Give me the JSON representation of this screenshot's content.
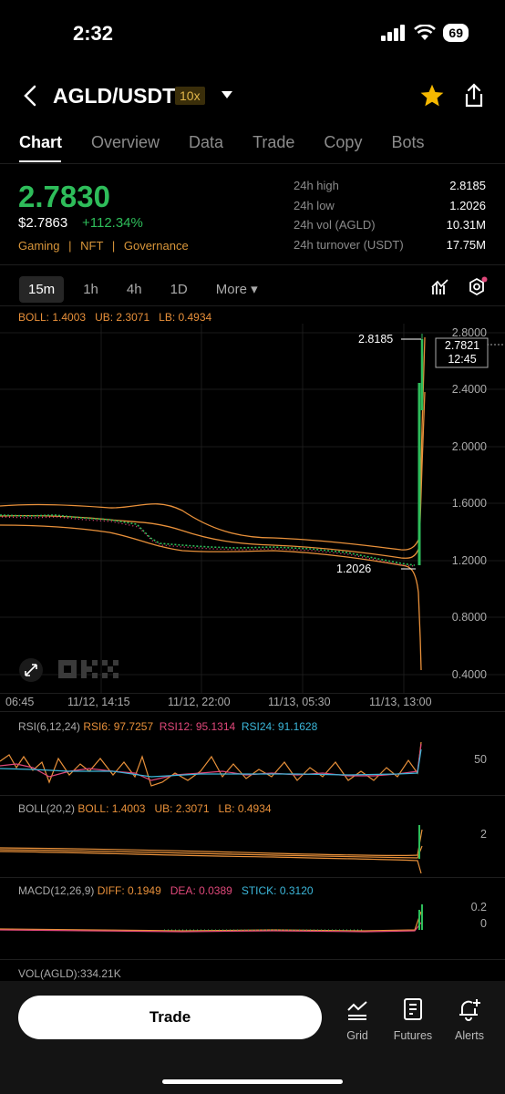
{
  "status_bar": {
    "time": "2:32",
    "battery": "69"
  },
  "header": {
    "pair": "AGLD/USDT",
    "leverage": "10x"
  },
  "tabs": [
    "Chart",
    "Overview",
    "Data",
    "Trade",
    "Copy",
    "Bots"
  ],
  "ticker": {
    "last_price": "2.7830",
    "usd_price": "$2.7863",
    "change": "+112.34%",
    "tags": [
      "Gaming",
      "NFT",
      "Governance"
    ],
    "stats": [
      {
        "label": "24h high",
        "value": "2.8185"
      },
      {
        "label": "24h low",
        "value": "1.2026"
      },
      {
        "label": "24h vol (AGLD)",
        "value": "10.31M"
      },
      {
        "label": "24h turnover (USDT)",
        "value": "17.75M"
      }
    ]
  },
  "timeframes": {
    "items": [
      "15m",
      "1h",
      "4h",
      "1D"
    ],
    "more": "More",
    "active": "15m"
  },
  "main_chart": {
    "boll_line": {
      "boll": "BOLL: 1.4003",
      "ub": "UB: 2.3071",
      "lb": "LB: 0.4934"
    },
    "high_marker": "2.8185",
    "low_marker": "1.2026",
    "current_price": "2.7821",
    "countdown": "12:45",
    "y_axis": [
      "2.8000",
      "2.4000",
      "2.0000",
      "1.6000",
      "1.2000",
      "0.8000",
      "0.4000"
    ],
    "x_axis": [
      "06:45",
      "11/12, 14:15",
      "11/12, 22:00",
      "11/13, 05:30",
      "11/13, 13:00"
    ]
  },
  "rsi": {
    "title": "RSI(6,12,24)",
    "rsi6": "RSI6: 97.7257",
    "rsi12": "RSI12: 95.1314",
    "rsi24": "RSI24: 91.1628",
    "axis": "50"
  },
  "boll_panel": {
    "title": "BOLL(20,2)",
    "boll": "BOLL: 1.4003",
    "ub": "UB: 2.3071",
    "lb": "LB: 0.4934",
    "axis": "2"
  },
  "macd": {
    "title": "MACD(12,26,9)",
    "diff": "DIFF: 0.1949",
    "dea": "DEA: 0.0389",
    "stick": "STICK: 0.3120",
    "axis_top": "0.2",
    "axis_zero": "0"
  },
  "vol": {
    "title": "VOL(AGLD):334.21K"
  },
  "bottom_nav": {
    "trade": "Trade",
    "grid": "Grid",
    "futures": "Futures",
    "alerts": "Alerts"
  },
  "colors": {
    "up": "#2ebd5a",
    "down": "#e0487a",
    "boll": "#e8903a",
    "accent": "#f5b800"
  }
}
